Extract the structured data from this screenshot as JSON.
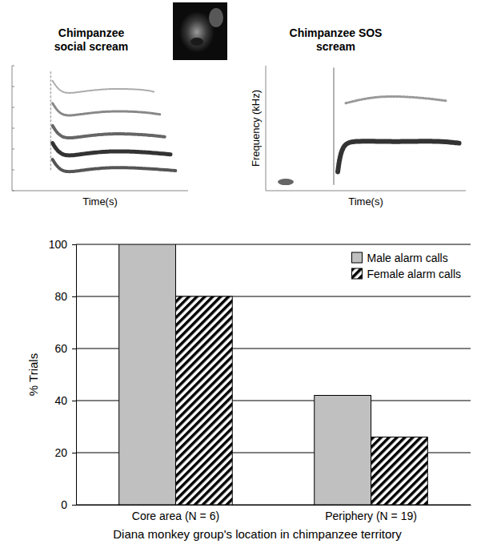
{
  "chart_data": [
    {
      "type": "spectrogram",
      "title": "Chimpanzee social scream",
      "x_label": "Time(s)",
      "tick_labels": false
    },
    {
      "type": "spectrogram",
      "title": "Chimpanzee SOS scream",
      "x_label": "Time(s)",
      "y_label": "Frequency (kHz)",
      "tick_labels": false
    },
    {
      "type": "bar",
      "categories": [
        "Core area (N = 6)",
        "Periphery (N = 19)"
      ],
      "series": [
        {
          "name": "Male alarm calls",
          "color": "#c0c0c0",
          "values": [
            100,
            42
          ]
        },
        {
          "name": "Female alarm calls",
          "color": "#000000",
          "values": [
            80,
            26
          ]
        }
      ],
      "x_label": "Diana monkey group's location in chimpanzee territory",
      "y_label": "% Trials",
      "ylim": [
        0,
        100
      ],
      "yticks": [
        0,
        20,
        40,
        60,
        80,
        100
      ],
      "grid": true,
      "legend": "top-right"
    }
  ]
}
